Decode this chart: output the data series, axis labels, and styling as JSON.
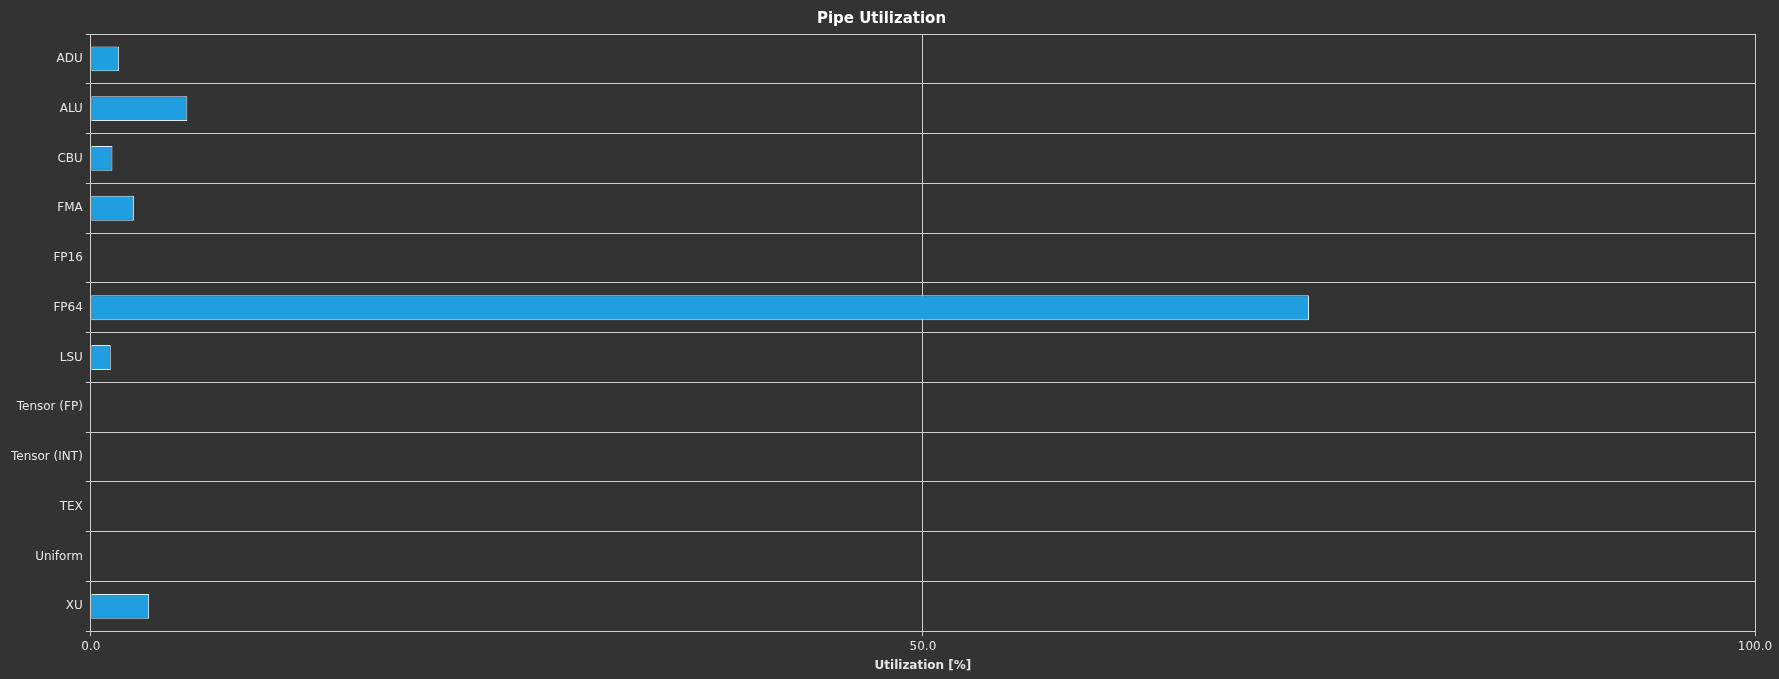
{
  "chart_data": {
    "type": "bar",
    "orientation": "horizontal",
    "title": "Pipe Utilization",
    "xlabel": "Utilization [%]",
    "categories": [
      "ADU",
      "ALU",
      "CBU",
      "FMA",
      "FP16",
      "FP64",
      "LSU",
      "Tensor (FP)",
      "Tensor (INT)",
      "TEX",
      "Uniform",
      "XU"
    ],
    "values": [
      1.7,
      5.8,
      1.3,
      2.6,
      0,
      73.2,
      1.2,
      0,
      0,
      0,
      0,
      3.5
    ],
    "color": "#1f9fe0",
    "xlim": [
      0,
      100
    ],
    "xticks": [
      {
        "value": 0,
        "label": "0.0"
      },
      {
        "value": 50,
        "label": "50.0"
      },
      {
        "value": 100,
        "label": "100.0"
      }
    ],
    "grid": true,
    "legend": false
  }
}
